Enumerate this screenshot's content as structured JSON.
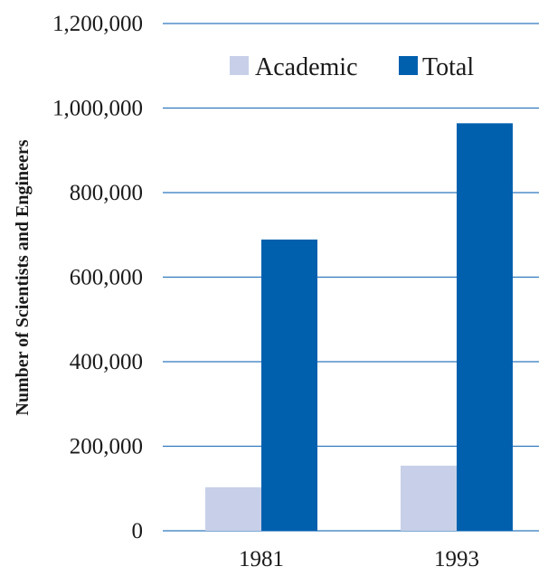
{
  "chart_data": {
    "type": "bar",
    "title": "",
    "xlabel": "",
    "ylabel": "Number of Scientists and Engineers",
    "categories": [
      "1981",
      "1993"
    ],
    "series": [
      {
        "name": "Academic",
        "values": [
          103000,
          154000
        ],
        "color": "#c7d0e8"
      },
      {
        "name": "Total",
        "values": [
          689000,
          964000
        ],
        "color": "#0060ae"
      }
    ],
    "ylim": [
      0,
      1200000
    ],
    "yticks": [
      0,
      200000,
      400000,
      600000,
      800000,
      1000000,
      1200000
    ],
    "ytick_labels": [
      "0",
      "200,000",
      "400,000",
      "600,000",
      "800,000",
      "1,000,000",
      "1,200,000"
    ],
    "grid": true,
    "gridline_color": "#2f78bd",
    "legend_position": "top-right"
  }
}
